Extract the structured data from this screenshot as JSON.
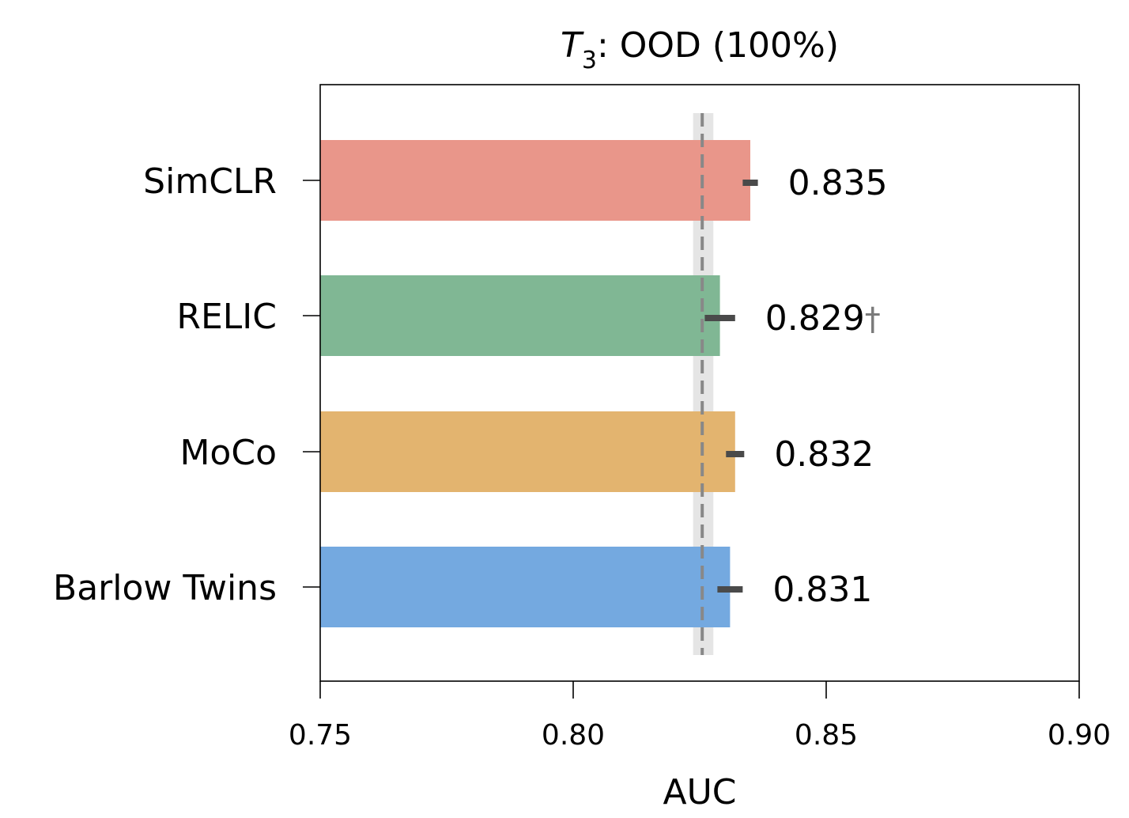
{
  "chart_data": {
    "type": "bar",
    "orientation": "horizontal",
    "title": {
      "var": "T",
      "sub": "3",
      "rest": ": OOD (100%)"
    },
    "xlabel": "AUC",
    "ylabel": "",
    "xlim": [
      0.75,
      0.9
    ],
    "xticks": [
      "0.75",
      "0.80",
      "0.85",
      "0.90"
    ],
    "categories": [
      "SimCLR",
      "RELIC",
      "MoCo",
      "Barlow Twins"
    ],
    "values": [
      0.835,
      0.829,
      0.832,
      0.831
    ],
    "error": [
      0.0015,
      0.003,
      0.0018,
      0.0025
    ],
    "value_labels": [
      "0.835",
      "0.829",
      "0.832",
      "0.831"
    ],
    "value_marks": [
      "",
      "†",
      "",
      ""
    ],
    "colors": [
      "#e9968a",
      "#80b794",
      "#e3b46f",
      "#74a9e0"
    ],
    "baseline": {
      "value": 0.8255,
      "band": [
        0.8237,
        0.8277
      ],
      "style": "dashed"
    },
    "grid": false,
    "legend": "none"
  }
}
